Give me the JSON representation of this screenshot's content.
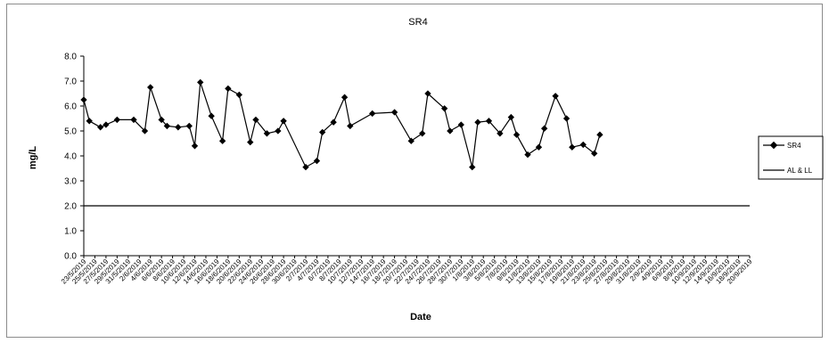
{
  "chart_data": {
    "type": "line",
    "title": "SR4",
    "xlabel": "Date",
    "ylabel": "mg/L",
    "ylim": [
      0,
      8
    ],
    "yticks": [
      "0.0",
      "1.0",
      "2.0",
      "3.0",
      "4.0",
      "5.0",
      "6.0",
      "7.0",
      "8.0"
    ],
    "grid": false,
    "legend_position": "right",
    "x": [
      "23/5/2019",
      "25/5/2019",
      "27/5/2019",
      "29/5/2019",
      "31/5/2019",
      "2/6/2019",
      "4/6/2019",
      "6/6/2019",
      "8/6/2019",
      "10/6/2019",
      "12/6/2019",
      "14/6/2019",
      "16/6/2019",
      "18/6/2019",
      "20/6/2019",
      "22/6/2019",
      "24/6/2019",
      "26/6/2019",
      "28/6/2019",
      "30/6/2019",
      "2/7/2019",
      "4/7/2019",
      "6/7/2019",
      "8/7/2019",
      "10/7/2019",
      "12/7/2019",
      "14/7/2019",
      "16/7/2019",
      "18/7/2019",
      "20/7/2019",
      "22/7/2019",
      "24/7/2019",
      "26/7/2019",
      "28/7/2019",
      "30/7/2019",
      "1/8/2019",
      "3/8/2019",
      "5/8/2019",
      "7/8/2019",
      "9/8/2019",
      "11/8/2019",
      "13/8/2019",
      "15/8/2019",
      "17/8/2019",
      "19/8/2019",
      "21/8/2019",
      "23/8/2019",
      "25/8/2019",
      "27/8/2019",
      "29/8/2019",
      "31/8/2019",
      "2/9/2019",
      "4/9/2019",
      "6/9/2019",
      "8/9/2019",
      "10/9/2019",
      "12/9/2019",
      "14/9/2019",
      "16/9/2019",
      "18/9/2019",
      "20/9/2019"
    ],
    "series": [
      {
        "name": "SR4",
        "points": [
          {
            "x": "23/5/2019",
            "y": 6.25
          },
          {
            "x": "24/5/2019",
            "y": 5.4
          },
          {
            "x": "26/5/2019",
            "y": 5.15
          },
          {
            "x": "27/5/2019",
            "y": 5.25
          },
          {
            "x": "29/5/2019",
            "y": 5.45
          },
          {
            "x": "1/6/2019",
            "y": 5.45
          },
          {
            "x": "3/6/2019",
            "y": 5.0
          },
          {
            "x": "4/6/2019",
            "y": 6.75
          },
          {
            "x": "6/6/2019",
            "y": 5.45
          },
          {
            "x": "7/6/2019",
            "y": 5.2
          },
          {
            "x": "9/6/2019",
            "y": 5.15
          },
          {
            "x": "11/6/2019",
            "y": 5.2
          },
          {
            "x": "12/6/2019",
            "y": 4.4
          },
          {
            "x": "13/6/2019",
            "y": 6.95
          },
          {
            "x": "15/6/2019",
            "y": 5.6
          },
          {
            "x": "17/6/2019",
            "y": 4.6
          },
          {
            "x": "18/6/2019",
            "y": 6.7
          },
          {
            "x": "20/6/2019",
            "y": 6.45
          },
          {
            "x": "22/6/2019",
            "y": 4.55
          },
          {
            "x": "23/6/2019",
            "y": 5.45
          },
          {
            "x": "25/6/2019",
            "y": 4.9
          },
          {
            "x": "27/6/2019",
            "y": 5.0
          },
          {
            "x": "28/6/2019",
            "y": 5.4
          },
          {
            "x": "2/7/2019",
            "y": 3.55
          },
          {
            "x": "4/7/2019",
            "y": 3.8
          },
          {
            "x": "5/7/2019",
            "y": 4.95
          },
          {
            "x": "7/7/2019",
            "y": 5.35
          },
          {
            "x": "9/7/2019",
            "y": 6.35
          },
          {
            "x": "10/7/2019",
            "y": 5.2
          },
          {
            "x": "14/7/2019",
            "y": 5.7
          },
          {
            "x": "18/7/2019",
            "y": 5.75
          },
          {
            "x": "21/7/2019",
            "y": 4.6
          },
          {
            "x": "23/7/2019",
            "y": 4.9
          },
          {
            "x": "24/7/2019",
            "y": 6.5
          },
          {
            "x": "27/7/2019",
            "y": 5.9
          },
          {
            "x": "28/7/2019",
            "y": 5.0
          },
          {
            "x": "30/7/2019",
            "y": 5.25
          },
          {
            "x": "1/8/2019",
            "y": 3.55
          },
          {
            "x": "2/8/2019",
            "y": 5.35
          },
          {
            "x": "4/8/2019",
            "y": 5.4
          },
          {
            "x": "6/8/2019",
            "y": 4.9
          },
          {
            "x": "8/8/2019",
            "y": 5.55
          },
          {
            "x": "9/8/2019",
            "y": 4.85
          },
          {
            "x": "11/8/2019",
            "y": 4.05
          },
          {
            "x": "13/8/2019",
            "y": 4.35
          },
          {
            "x": "14/8/2019",
            "y": 5.1
          },
          {
            "x": "16/8/2019",
            "y": 6.4
          },
          {
            "x": "18/8/2019",
            "y": 5.5
          },
          {
            "x": "19/8/2019",
            "y": 4.35
          },
          {
            "x": "21/8/2019",
            "y": 4.45
          },
          {
            "x": "23/8/2019",
            "y": 4.1
          },
          {
            "x": "24/8/2019",
            "y": 4.85
          }
        ]
      },
      {
        "name": "AL & LL",
        "value": 2.0
      }
    ]
  }
}
